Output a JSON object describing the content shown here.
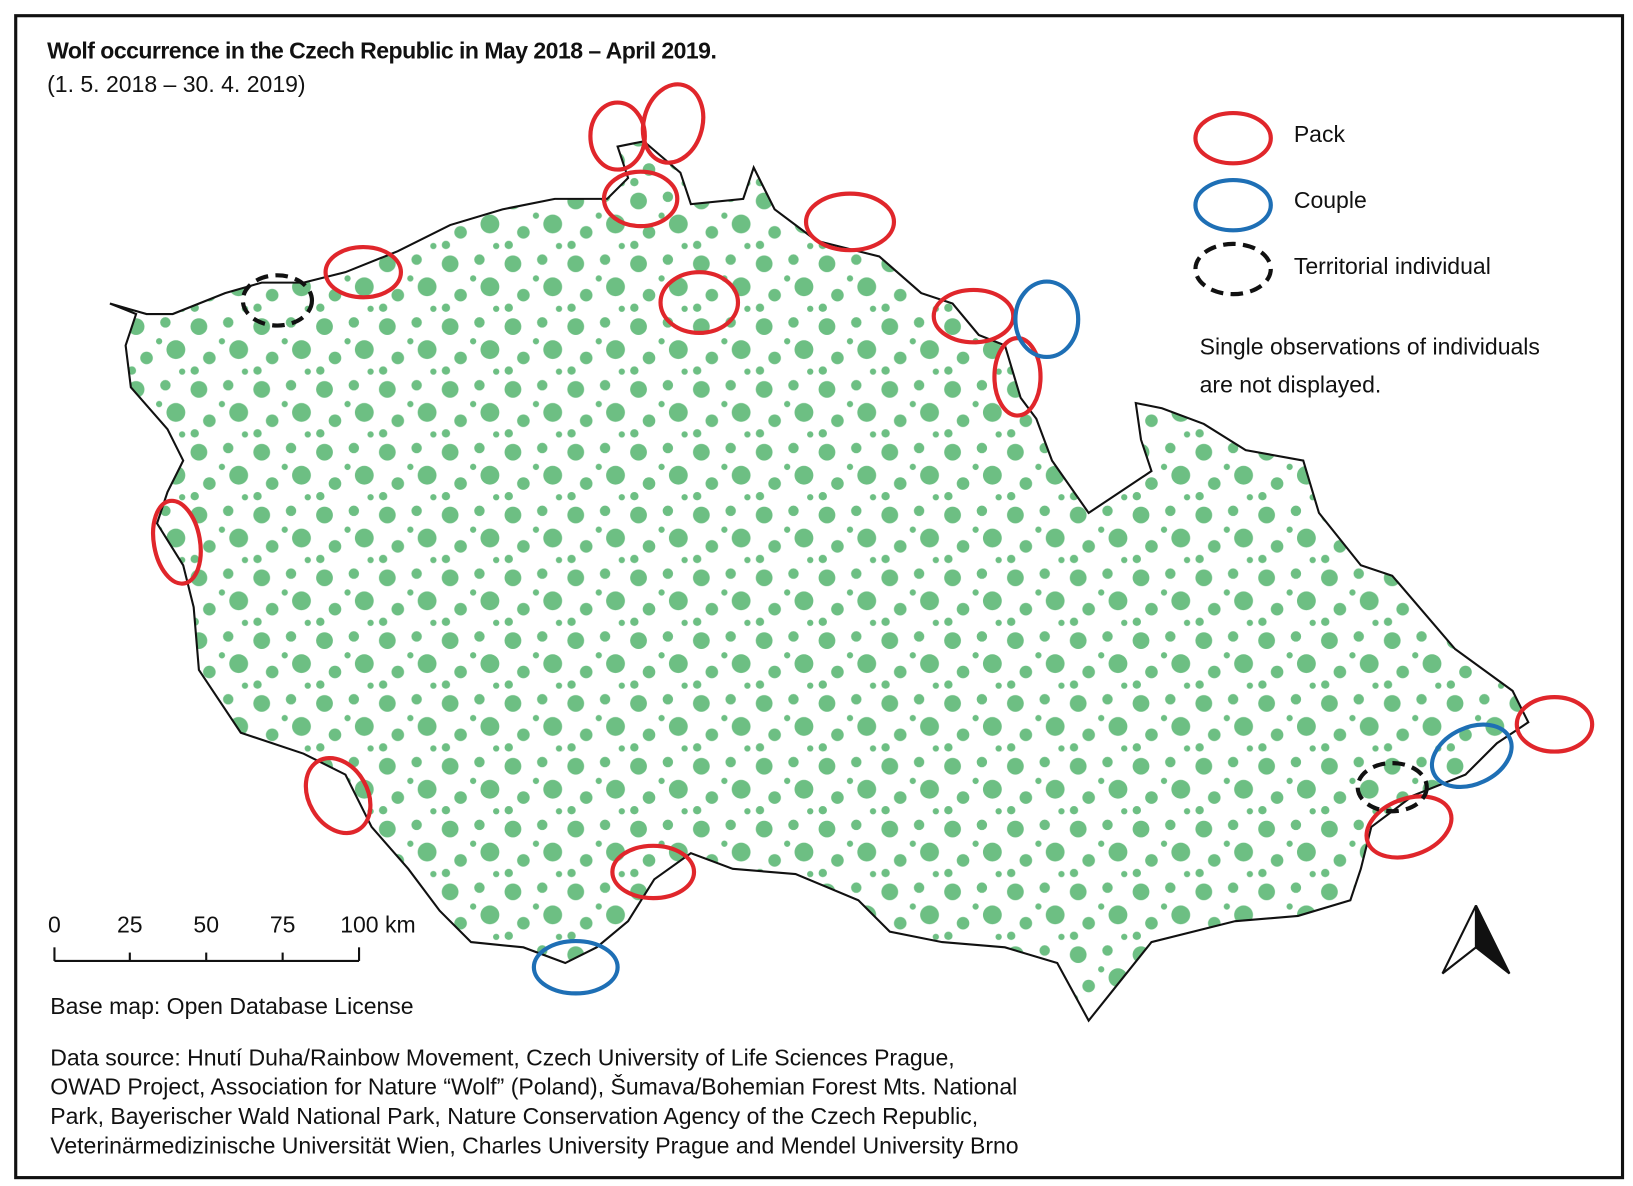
{
  "header": {
    "title": "Wolf occurrence in the Czech Republic in May 2018 – April 2019.",
    "subtitle": "(1. 5. 2018 – 30. 4. 2019)"
  },
  "legend": {
    "items": [
      "Pack",
      "Couple",
      "Territorial individual"
    ],
    "note": [
      "Single observations of individuals",
      "are not displayed."
    ]
  },
  "scale_bar": {
    "labels": [
      "0",
      "25",
      "50",
      "75",
      "100 km"
    ]
  },
  "credits": {
    "base_map": "Base map: Open Database License",
    "data_source": [
      "Data source: Hnutí Duha/Rainbow Movement, Czech University of Life Sciences Prague,",
      "OWAD Project, Association for Nature “Wolf” (Poland), Šumava/Bohemian Forest Mts. National",
      "Park, Bayerischer Wald National Park, Nature Conservation Agency of the Czech Republic,",
      "Veterinärmedizinische Universität Wien, Charles University Prague and Mendel University Brno"
    ]
  }
}
